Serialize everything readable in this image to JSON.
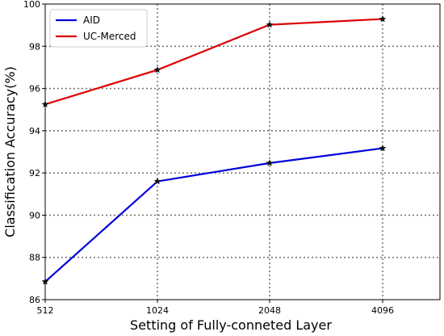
{
  "chart_data": {
    "type": "line",
    "categories": [
      "512",
      "1024",
      "2048",
      "4096"
    ],
    "xlabel": "Setting of Fully-conneted Layer",
    "ylabel": "Classification Accuracy(%)",
    "ylim": [
      86,
      100
    ],
    "yticks": [
      "86",
      "88",
      "90",
      "92",
      "94",
      "96",
      "98",
      "100"
    ],
    "grid": true,
    "legend_position": "top-left",
    "series": [
      {
        "name": "AID",
        "color": "#0000dd",
        "values": [
          86.85,
          91.6,
          92.47,
          93.17
        ]
      },
      {
        "name": "UC-Merced",
        "color": "#dd0000",
        "values": [
          95.25,
          96.88,
          99.02,
          99.29
        ]
      }
    ]
  }
}
